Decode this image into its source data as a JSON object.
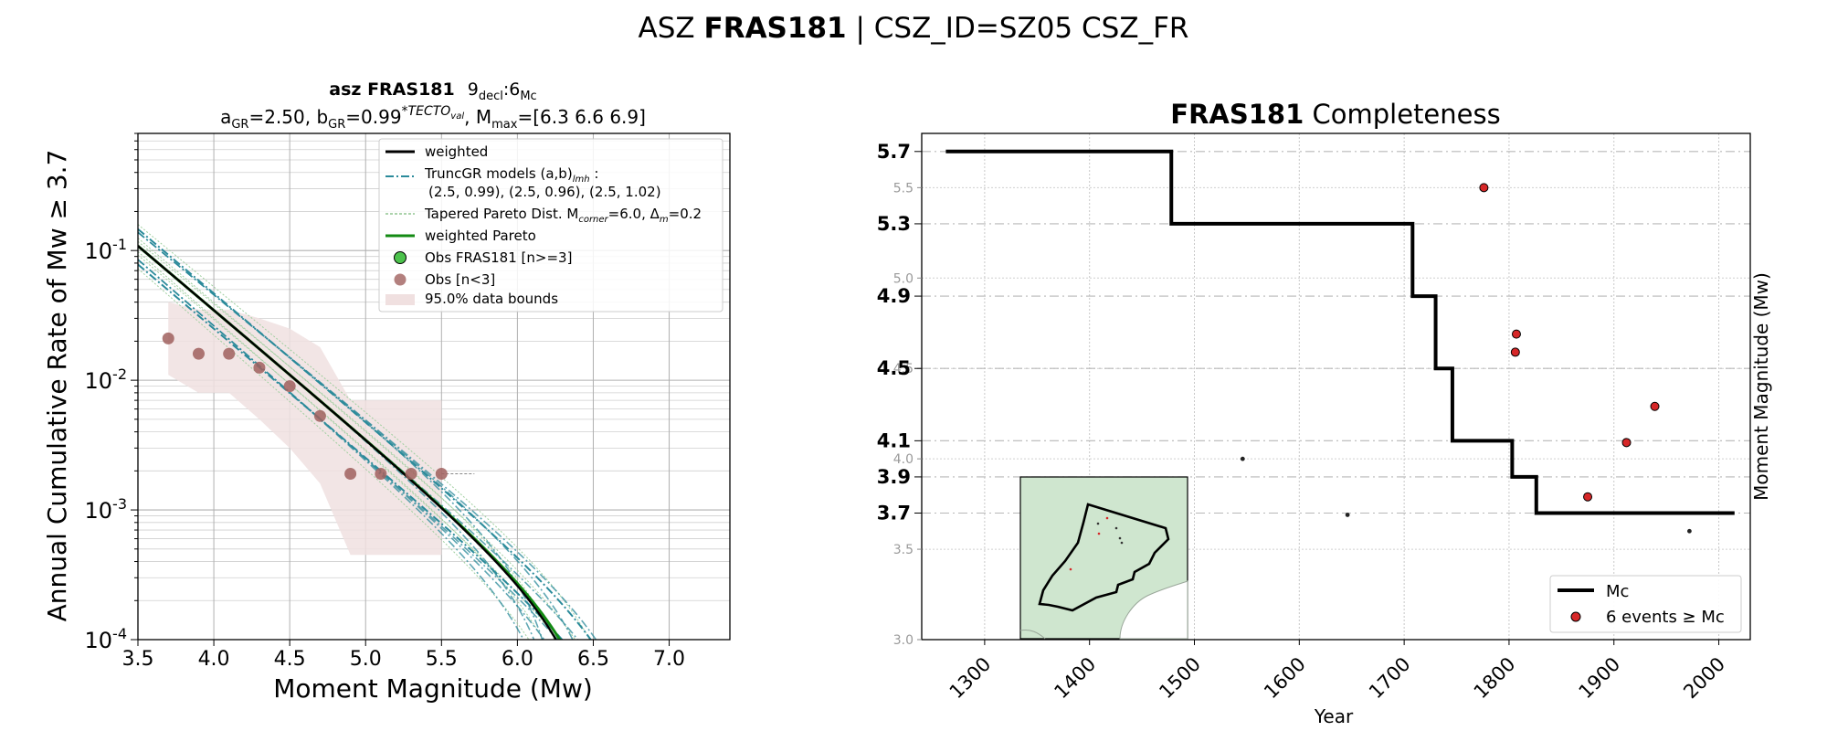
{
  "suptitle": {
    "pre": "ASZ ",
    "bold": "FRAS181",
    "post": " | CSZ_ID=SZ05 CSZ_FR"
  },
  "left": {
    "title1_bold": "asz FRAS181",
    "title1_rest": "9",
    "title1_sub1": "decl",
    "title1_mid": ":6",
    "title1_sub2": "Mc",
    "title2": {
      "a": "a",
      "a_sub": "GR",
      "a_val": "=2.50,  b",
      "b_sub": "GR",
      "b_val": "=0.99",
      "b_sup": "*TECTO",
      "b_sup_sub": "val",
      "m": ", M",
      "m_sub": "max",
      "m_val": "=[6.3 6.6 6.9]"
    },
    "xlabel": "Moment Magnitude (Mw)",
    "ylabel": "Annual Cumulative Rate of Mw  ≥  3.7",
    "legend": {
      "weighted": "weighted",
      "truncgr": "TruncGR models (a,b)",
      "truncgr_sub": "lmh",
      "truncgr_colon": " :",
      "truncgr_line2": "(2.5, 0.99), (2.5, 0.96), (2.5, 1.02)",
      "tapered_a": "Tapered Pareto Dist. M",
      "tapered_sub": "corner",
      "tapered_b": "=6.0, Δ",
      "tapered_sub2": "m",
      "tapered_c": "=0.2",
      "wpareto": "weighted Pareto",
      "obs": "Obs FRAS181 [n>=3]",
      "obs_small": "Obs [n<3]",
      "bounds": "95.0% data bounds"
    }
  },
  "right": {
    "title_bold": "FRAS181",
    "title_rest": " Completeness",
    "xlabel": "Year",
    "ylabel": "Moment Magnitude (Mw)",
    "legend": {
      "mc": "Mc",
      "events": "6 events  ≥  Mc"
    }
  },
  "colors": {
    "observed": "#a0605e",
    "weighted": "#000000",
    "pareto": "#138a13",
    "truncgr": "#2a8a9a",
    "bounds": "#f0e0e0",
    "events": "#d62728",
    "inset": "#cfe6cf"
  },
  "chart_data": [
    {
      "type": "line",
      "title": "asz FRAS181 9decl:6Mc",
      "xlabel": "Moment Magnitude (Mw)",
      "ylabel": "Annual Cumulative Rate of Mw ≥ 3.7",
      "xlim": [
        3.5,
        7.4
      ],
      "ylim": [
        0.0001,
        0.8
      ],
      "yscale": "log",
      "xticks": [
        3.5,
        4.0,
        4.5,
        5.0,
        5.5,
        6.0,
        6.5,
        7.0
      ],
      "xticklabels": [
        "3.5",
        "4.0",
        "4.5",
        "5.0",
        "5.5",
        "6.0",
        "6.5",
        "7.0"
      ],
      "yticks": [
        0.0001,
        0.001,
        0.01,
        0.1
      ],
      "observed": {
        "x": [
          3.7,
          3.9,
          4.1,
          4.3,
          4.5,
          4.7,
          4.9,
          5.1,
          5.3,
          5.5
        ],
        "y": [
          0.021,
          0.016,
          0.016,
          0.0125,
          0.009,
          0.0053,
          0.0019,
          0.0019,
          0.0019,
          0.0019
        ]
      },
      "bounds_upper": {
        "x": [
          3.7,
          3.9,
          4.1,
          4.3,
          4.5,
          4.7,
          4.9,
          5.1,
          5.3,
          5.5
        ],
        "y": [
          0.04,
          0.035,
          0.035,
          0.03,
          0.025,
          0.018,
          0.007,
          0.007,
          0.007,
          0.007
        ]
      },
      "bounds_lower": {
        "x": [
          3.7,
          3.9,
          4.1,
          4.3,
          4.5,
          4.7,
          4.9,
          5.1,
          5.3,
          5.5
        ],
        "y": [
          0.011,
          0.008,
          0.008,
          0.005,
          0.003,
          0.0016,
          0.00045,
          0.00045,
          0.00045,
          0.00045
        ]
      },
      "weighted_a": 2.5,
      "weighted_b": 0.99,
      "truncgr": [
        {
          "a": 2.5,
          "b": 0.99
        },
        {
          "a": 2.5,
          "b": 0.96
        },
        {
          "a": 2.5,
          "b": 1.02
        }
      ],
      "mmax": [
        6.3,
        6.6,
        6.9
      ],
      "m_corner": 6.0,
      "delta_m": 0.2
    },
    {
      "type": "line",
      "title": "FRAS181 Completeness",
      "xlabel": "Year",
      "ylabel": "Moment Magnitude (Mw)",
      "xlim": [
        1240,
        2030
      ],
      "ylim": [
        3.0,
        5.8
      ],
      "xticks": [
        1300,
        1400,
        1500,
        1600,
        1700,
        1800,
        1900,
        2000
      ],
      "xticklabels": [
        "1300",
        "1400",
        "1500",
        "1600",
        "1700",
        "1800",
        "1900",
        "2000"
      ],
      "yticks_minor": [
        3.0,
        3.5,
        4.0,
        4.5,
        5.0,
        5.5
      ],
      "yticks_major": [
        3.7,
        3.9,
        4.1,
        4.5,
        4.9,
        5.3,
        5.7
      ],
      "mc_step": {
        "x": [
          1263,
          1478,
          1478,
          1708,
          1708,
          1730,
          1730,
          1746,
          1746,
          1803,
          1803,
          1826,
          1826,
          2015
        ],
        "y": [
          5.7,
          5.7,
          5.3,
          5.3,
          4.9,
          4.9,
          4.5,
          4.5,
          4.1,
          4.1,
          3.9,
          3.9,
          3.7,
          3.7
        ]
      },
      "events_above_mc": {
        "x": [
          1776,
          1807,
          1806,
          1939,
          1912,
          1875
        ],
        "y": [
          5.5,
          4.69,
          4.59,
          4.29,
          4.09,
          3.79
        ]
      },
      "events_below_mc": {
        "x": [
          1546,
          1646,
          1972
        ],
        "y": [
          4.0,
          3.69,
          3.6
        ]
      }
    }
  ]
}
